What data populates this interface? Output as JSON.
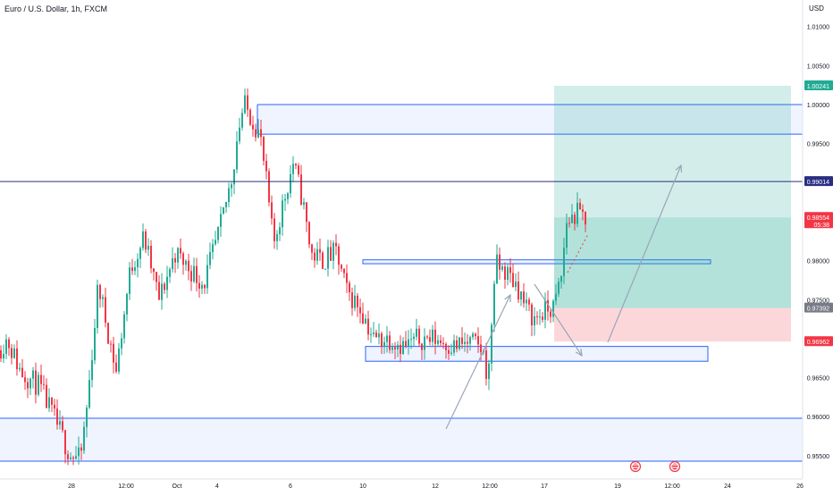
{
  "header": {
    "title": "Euro / U.S. Dollar, 1h, FXCM",
    "currency": "USD"
  },
  "chart_data": {
    "type": "candlestick",
    "symbol": "EURUSD",
    "timeframe": "1h",
    "broker": "FXCM",
    "ylim": [
      0.954,
      1.0135
    ],
    "y_ticks": [
      "1.01000",
      "1.00500",
      "1.00000",
      "0.99500",
      "0.98000",
      "0.97500",
      "0.96500",
      "0.96000",
      "0.95500"
    ],
    "x_ticks": [
      "28",
      "12:00",
      "Oct",
      "4",
      "6",
      "10",
      "12",
      "12:00",
      "17",
      "19",
      "12:00",
      "24",
      "26"
    ],
    "price_badges": [
      {
        "value": "1.00241",
        "color": "#22ab94",
        "text_color": "#ffffff"
      },
      {
        "value": "0.99014",
        "color": "#2a2e82",
        "text_color": "#ffffff"
      },
      {
        "value": "0.98554",
        "sub": "05:38",
        "color": "#f23645",
        "text_color": "#ffffff"
      },
      {
        "value": "0.97392",
        "color": "#787b86",
        "text_color": "#ffffff"
      },
      {
        "value": "0.96962",
        "color": "#f23645",
        "text_color": "#ffffff"
      }
    ],
    "horizontal_lines": [
      {
        "price": 0.99014,
        "color": "#2a2e82"
      }
    ],
    "colors": {
      "up": "#22ab94",
      "down": "#f23645",
      "zone": "#2962ff",
      "arrow": "#9aa5b8"
    }
  }
}
